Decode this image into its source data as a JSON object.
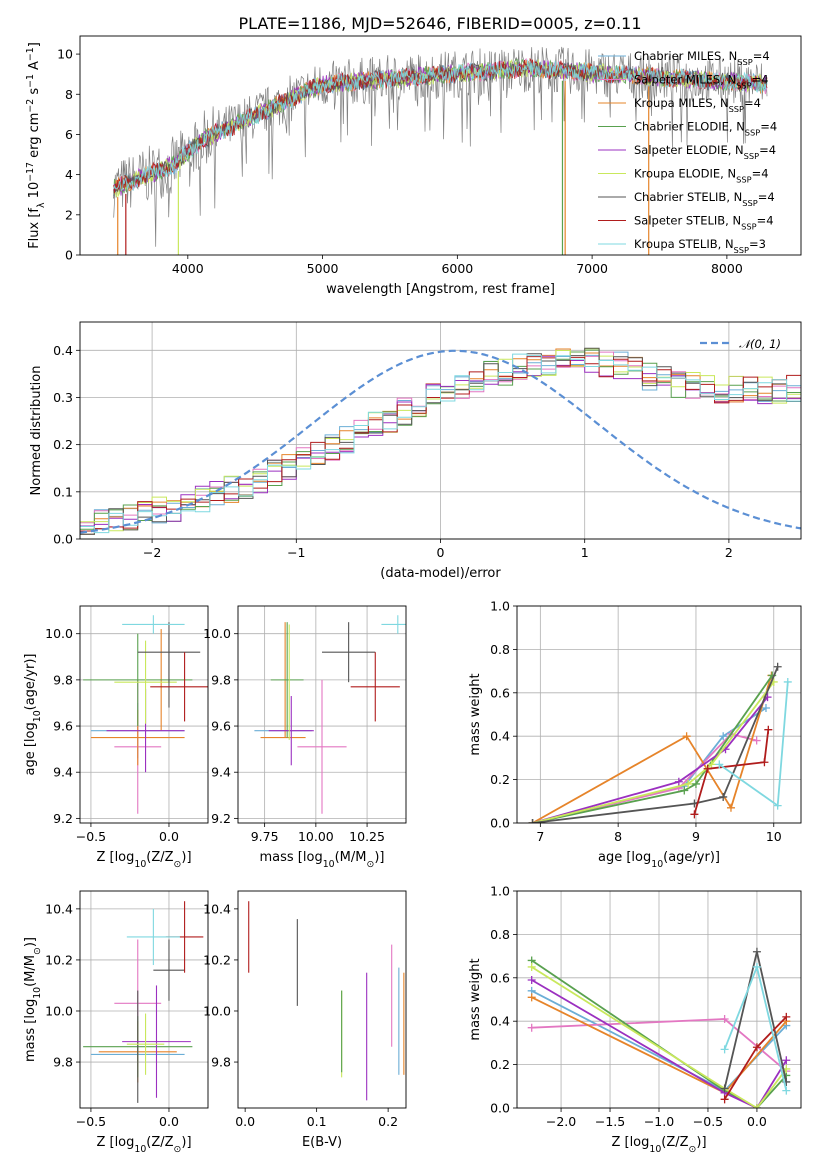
{
  "figure": {
    "title": "PLATE=1186, MJD=52646, FIBERID=0005, z=0.11"
  },
  "chart_data": [
    {
      "type": "line",
      "name": "spectrum",
      "xlabel": "wavelength [Angstrom, rest frame]",
      "ylabel": "Flux [f_λ 10^-17 erg cm^-2 s^-1 A^-1]",
      "xlim": [
        3200,
        8550
      ],
      "ylim": [
        0,
        10.9
      ],
      "xticks": [
        4000,
        5000,
        6000,
        7000,
        8000
      ],
      "yticks": [
        0,
        2,
        4,
        6,
        8,
        10
      ],
      "grid": false,
      "legend_position": "right",
      "data_x_range": [
        3450,
        8300
      ],
      "series": [
        {
          "name": "Chabrier MILES, N_SSP=4",
          "color": "#6baed6"
        },
        {
          "name": "Salpeter MILES, N_SSP=4",
          "color": "#e377c2"
        },
        {
          "name": "Kroupa MILES, N_SSP=4",
          "color": "#e6842a"
        },
        {
          "name": "Chabrier ELODIE, N_SSP=4",
          "color": "#59a14f"
        },
        {
          "name": "Salpeter ELODIE, N_SSP=4",
          "color": "#9b30c0"
        },
        {
          "name": "Kroupa ELODIE, N_SSP=4",
          "color": "#c9e85c"
        },
        {
          "name": "Chabrier STELIB, N_SSP=4",
          "color": "#555555"
        },
        {
          "name": "Salpeter STELIB, N_SSP=4",
          "color": "#b01c1c"
        },
        {
          "name": "Kroupa STELIB, N_SSP=3",
          "color": "#7fd8e0"
        }
      ],
      "data_color": "#808080"
    },
    {
      "type": "line",
      "name": "residuals",
      "xlabel": "(data-model)/error",
      "ylabel": "Normed distribution",
      "xlim": [
        -2.5,
        2.5
      ],
      "ylim": [
        0,
        0.46
      ],
      "xticks": [
        -2,
        -1,
        0,
        1,
        2
      ],
      "yticks": [
        0.0,
        0.1,
        0.2,
        0.3,
        0.4
      ],
      "grid": true,
      "legend_position": "top-right",
      "reference": {
        "label": "N(0,1)",
        "color": "#5b8fd4",
        "mu": 0.1,
        "sigma": 1.0
      },
      "bin_edges_start": -2.5,
      "bin_width": 0.1,
      "hist_base": [
        0.032,
        0.036,
        0.041,
        0.046,
        0.052,
        0.059,
        0.066,
        0.074,
        0.083,
        0.092,
        0.103,
        0.114,
        0.126,
        0.138,
        0.151,
        0.165,
        0.179,
        0.194,
        0.209,
        0.224,
        0.24,
        0.255,
        0.27,
        0.285,
        0.3,
        0.312,
        0.325,
        0.337,
        0.348,
        0.356,
        0.364,
        0.37,
        0.374,
        0.377,
        0.379,
        0.378,
        0.374,
        0.367,
        0.356,
        0.344,
        0.336,
        0.33,
        0.327,
        0.322,
        0.318,
        0.316,
        0.314,
        0.315,
        0.317,
        0.32,
        0.318,
        0.305,
        0.288,
        0.268,
        0.246,
        0.224,
        0.204,
        0.186,
        0.17,
        0.155,
        0.14,
        0.126,
        0.113,
        0.101,
        0.09,
        0.079,
        0.07,
        0.062,
        0.054,
        0.048,
        0.042,
        0.037,
        0.033,
        0.029,
        0.026,
        0.023,
        0.02,
        0.018,
        0.016,
        0.014
      ]
    },
    {
      "type": "scatter",
      "name": "age-vs-Z",
      "xlabel": "Z [log10(Z/Z_sun)]",
      "ylabel": "age  [log10(age/yr)]",
      "xlim": [
        -0.57,
        0.25
      ],
      "ylim": [
        9.18,
        10.12
      ],
      "xticks": [
        -0.5,
        0.0
      ],
      "yticks": [
        9.2,
        9.4,
        9.6,
        9.8,
        10.0
      ],
      "grid": true,
      "points": [
        {
          "color": "#6baed6",
          "x": -0.2,
          "xerr": 0.3,
          "y": 9.58,
          "yerr": 0.12
        },
        {
          "color": "#e377c2",
          "x": -0.2,
          "xerr": 0.15,
          "y": 9.51,
          "yerr": 0.29
        },
        {
          "color": "#e6842a",
          "x": -0.2,
          "xerr": 0.3,
          "y": 9.55,
          "yerr": 0.12
        },
        {
          "color": "#e6842a",
          "x": -0.05,
          "xerr": 0.0,
          "y": 9.8,
          "yerr": 0.22
        },
        {
          "color": "#59a14f",
          "x": -0.2,
          "xerr": 0.35,
          "y": 9.8,
          "yerr": 0.2
        },
        {
          "color": "#9b30c0",
          "x": -0.15,
          "xerr": 0.25,
          "y": 9.58,
          "yerr": 0.18
        },
        {
          "color": "#c9e85c",
          "x": -0.15,
          "xerr": 0.2,
          "y": 9.79,
          "yerr": 0.18
        },
        {
          "color": "#555555",
          "x": 0.0,
          "xerr": 0.2,
          "y": 9.92,
          "yerr": 0.13
        },
        {
          "color": "#555555",
          "x": 0.0,
          "xerr": 0.0,
          "y": 9.84,
          "yerr": 0.16
        },
        {
          "color": "#b01c1c",
          "x": 0.1,
          "xerr": 0.22,
          "y": 9.77,
          "yerr": 0.15
        },
        {
          "color": "#7fd8e0",
          "x": -0.1,
          "xerr": 0.2,
          "y": 10.04,
          "yerr": 0.04
        }
      ]
    },
    {
      "type": "scatter",
      "name": "age-vs-mass",
      "xlabel": "mass [log10(M/M_sun)]",
      "ylabel": "",
      "xlim": [
        9.62,
        10.44
      ],
      "ylim": [
        9.18,
        10.12
      ],
      "xticks": [
        9.75,
        10.0,
        10.25
      ],
      "xtick_labels": [
        "9.75",
        "10.00",
        "10.25"
      ],
      "yticks": [
        9.2,
        9.4,
        9.6,
        9.8,
        10.0
      ],
      "grid": true,
      "points": [
        {
          "color": "#6baed6",
          "x": 9.84,
          "xerr": 0.14,
          "y": 9.58,
          "yerr": 0.0
        },
        {
          "color": "#e377c2",
          "x": 10.03,
          "xerr": 0.12,
          "y": 9.51,
          "yerr": 0.29
        },
        {
          "color": "#e6842a",
          "x": 9.84,
          "xerr": 0.11,
          "y": 9.55,
          "yerr": 0.0
        },
        {
          "color": "#e6842a",
          "x": 9.85,
          "xerr": 0.0,
          "y": 9.8,
          "yerr": 0.25
        },
        {
          "color": "#59a14f",
          "x": 9.86,
          "xerr": 0.08,
          "y": 9.8,
          "yerr": 0.25
        },
        {
          "color": "#9b30c0",
          "x": 9.88,
          "xerr": 0.11,
          "y": 9.58,
          "yerr": 0.15
        },
        {
          "color": "#c9e85c",
          "x": 9.87,
          "xerr": 0.0,
          "y": 9.79,
          "yerr": 0.25
        },
        {
          "color": "#555555",
          "x": 10.16,
          "xerr": 0.13,
          "y": 9.92,
          "yerr": 0.13
        },
        {
          "color": "#b01c1c",
          "x": 10.29,
          "xerr": 0.12,
          "y": 9.77,
          "yerr": 0.15
        },
        {
          "color": "#7fd8e0",
          "x": 10.4,
          "xerr": 0.08,
          "y": 10.04,
          "yerr": 0.04
        }
      ]
    },
    {
      "type": "line",
      "name": "mass-weight-vs-age",
      "xlabel": "age  [log10(age/yr)]",
      "ylabel": "mass weight",
      "xlim": [
        6.7,
        10.35
      ],
      "ylim": [
        0,
        1.0
      ],
      "xticks": [
        7,
        8,
        9,
        10
      ],
      "yticks": [
        0.0,
        0.2,
        0.4,
        0.6,
        0.8,
        1.0
      ],
      "grid": true,
      "series": [
        {
          "color": "#6baed6",
          "x": [
            6.9,
            8.85,
            9.35,
            9.9
          ],
          "y": [
            0.0,
            0.17,
            0.4,
            0.53
          ]
        },
        {
          "color": "#e377c2",
          "x": [
            6.9,
            8.78,
            9.45,
            9.78
          ],
          "y": [
            0.0,
            0.16,
            0.41,
            0.38
          ]
        },
        {
          "color": "#e6842a",
          "x": [
            6.9,
            8.88,
            9.45,
            9.97
          ],
          "y": [
            0.0,
            0.4,
            0.07,
            0.68
          ]
        },
        {
          "color": "#59a14f",
          "x": [
            6.9,
            8.85,
            9.0,
            9.98
          ],
          "y": [
            0.0,
            0.15,
            0.18,
            0.68
          ]
        },
        {
          "color": "#9b30c0",
          "x": [
            6.9,
            8.78,
            9.38,
            9.92
          ],
          "y": [
            0.0,
            0.19,
            0.34,
            0.58
          ]
        },
        {
          "color": "#c9e85c",
          "x": [
            6.9,
            8.9,
            9.2,
            10.0
          ],
          "y": [
            0.0,
            0.18,
            0.27,
            0.65
          ]
        },
        {
          "color": "#555555",
          "x": [
            6.9,
            8.98,
            9.35,
            10.05
          ],
          "y": [
            0.0,
            0.09,
            0.12,
            0.72
          ]
        },
        {
          "color": "#b01c1c",
          "x": [
            8.98,
            9.15,
            9.88,
            9.93
          ],
          "y": [
            0.04,
            0.25,
            0.28,
            0.43
          ]
        },
        {
          "color": "#7fd8e0",
          "x": [
            9.3,
            10.05,
            10.18
          ],
          "y": [
            0.27,
            0.08,
            0.65
          ]
        }
      ]
    },
    {
      "type": "scatter",
      "name": "mass-vs-Z",
      "xlabel": "Z [log10(Z/Z_sun)]",
      "ylabel": "mass [log10(M/M_sun)]",
      "xlim": [
        -0.57,
        0.25
      ],
      "ylim": [
        9.62,
        10.47
      ],
      "xticks": [
        -0.5,
        0.0
      ],
      "yticks": [
        9.8,
        10.0,
        10.2,
        10.4
      ],
      "grid": true,
      "points": [
        {
          "color": "#6baed6",
          "x": -0.2,
          "xerr": 0.3,
          "y": 9.83,
          "yerr": 0.0
        },
        {
          "color": "#e377c2",
          "x": -0.2,
          "xerr": 0.15,
          "y": 10.03,
          "yerr": 0.25
        },
        {
          "color": "#e6842a",
          "x": -0.2,
          "xerr": 0.25,
          "y": 9.84,
          "yerr": 0.12
        },
        {
          "color": "#59a14f",
          "x": -0.2,
          "xerr": 0.35,
          "y": 9.86,
          "yerr": 0.12
        },
        {
          "color": "#555555",
          "x": -0.2,
          "xerr": 0.0,
          "y": 9.86,
          "yerr": 0.22
        },
        {
          "color": "#9b30c0",
          "x": -0.08,
          "xerr": 0.22,
          "y": 9.88,
          "yerr": 0.22
        },
        {
          "color": "#c9e85c",
          "x": -0.15,
          "xerr": 0.12,
          "y": 9.87,
          "yerr": 0.12
        },
        {
          "color": "#555555",
          "x": 0.0,
          "xerr": 0.1,
          "y": 10.16,
          "yerr": 0.12
        },
        {
          "color": "#b01c1c",
          "x": 0.1,
          "xerr": 0.12,
          "y": 10.29,
          "yerr": 0.14
        },
        {
          "color": "#7fd8e0",
          "x": -0.1,
          "xerr": 0.17,
          "y": 10.29,
          "yerr": 0.11
        }
      ]
    },
    {
      "type": "scatter",
      "name": "mass-vs-ebv",
      "xlabel": "E(B-V)",
      "ylabel": "",
      "xlim": [
        -0.01,
        0.225
      ],
      "ylim": [
        9.62,
        10.47
      ],
      "xticks": [
        0.0,
        0.1,
        0.2
      ],
      "yticks": [
        9.8,
        10.0,
        10.2,
        10.4
      ],
      "grid": false,
      "points": [
        {
          "color": "#b01c1c",
          "x": 0.005,
          "xerr": 0.0,
          "y": 10.29,
          "yerr": 0.14
        },
        {
          "color": "#555555",
          "x": 0.073,
          "xerr": 0.0,
          "y": 10.19,
          "yerr": 0.17
        },
        {
          "color": "#c9e85c",
          "x": 0.135,
          "xerr": 0.0,
          "y": 9.91,
          "yerr": 0.17
        },
        {
          "color": "#59a14f",
          "x": 0.135,
          "xerr": 0.0,
          "y": 9.92,
          "yerr": 0.16
        },
        {
          "color": "#9b30c0",
          "x": 0.17,
          "xerr": 0.0,
          "y": 9.9,
          "yerr": 0.25
        },
        {
          "color": "#e377c2",
          "x": 0.205,
          "xerr": 0.0,
          "y": 10.06,
          "yerr": 0.2
        },
        {
          "color": "#6baed6",
          "x": 0.215,
          "xerr": 0.0,
          "y": 9.96,
          "yerr": 0.21
        },
        {
          "color": "#e6842a",
          "x": 0.222,
          "xerr": 0.0,
          "y": 9.95,
          "yerr": 0.2
        }
      ]
    },
    {
      "type": "line",
      "name": "mass-weight-vs-Z",
      "xlabel": "Z [log10(Z/Z_sun)]",
      "ylabel": "mass weight",
      "xlim": [
        -2.45,
        0.45
      ],
      "ylim": [
        0,
        1.0
      ],
      "xticks": [
        -2.0,
        -1.5,
        -1.0,
        -0.5,
        0.0
      ],
      "yticks": [
        0.0,
        0.2,
        0.4,
        0.6,
        0.8,
        1.0
      ],
      "grid": true,
      "series": [
        {
          "color": "#6baed6",
          "x": [
            -2.3,
            -0.33,
            0.3
          ],
          "y": [
            0.54,
            0.08,
            0.38
          ]
        },
        {
          "color": "#e377c2",
          "x": [
            -2.3,
            -0.33,
            0.3
          ],
          "y": [
            0.37,
            0.41,
            0.17
          ]
        },
        {
          "color": "#e6842a",
          "x": [
            -2.3,
            -0.33,
            0.3
          ],
          "y": [
            0.51,
            0.07,
            0.4
          ]
        },
        {
          "color": "#59a14f",
          "x": [
            -2.3,
            -0.33,
            0.0,
            0.3
          ],
          "y": [
            0.68,
            0.08,
            0.0,
            0.15
          ]
        },
        {
          "color": "#9b30c0",
          "x": [
            -2.3,
            -0.33,
            0.0,
            0.3
          ],
          "y": [
            0.59,
            0.07,
            0.0,
            0.22
          ]
        },
        {
          "color": "#c9e85c",
          "x": [
            -2.3,
            -0.33,
            0.0,
            0.3
          ],
          "y": [
            0.65,
            0.09,
            0.0,
            0.18
          ]
        },
        {
          "color": "#555555",
          "x": [
            -0.33,
            0.0,
            0.3
          ],
          "y": [
            0.09,
            0.72,
            0.12
          ]
        },
        {
          "color": "#b01c1c",
          "x": [
            -0.33,
            0.0,
            0.3
          ],
          "y": [
            0.04,
            0.28,
            0.42
          ]
        },
        {
          "color": "#7fd8e0",
          "x": [
            -0.33,
            0.0,
            0.3
          ],
          "y": [
            0.27,
            0.65,
            0.08
          ]
        }
      ]
    }
  ]
}
